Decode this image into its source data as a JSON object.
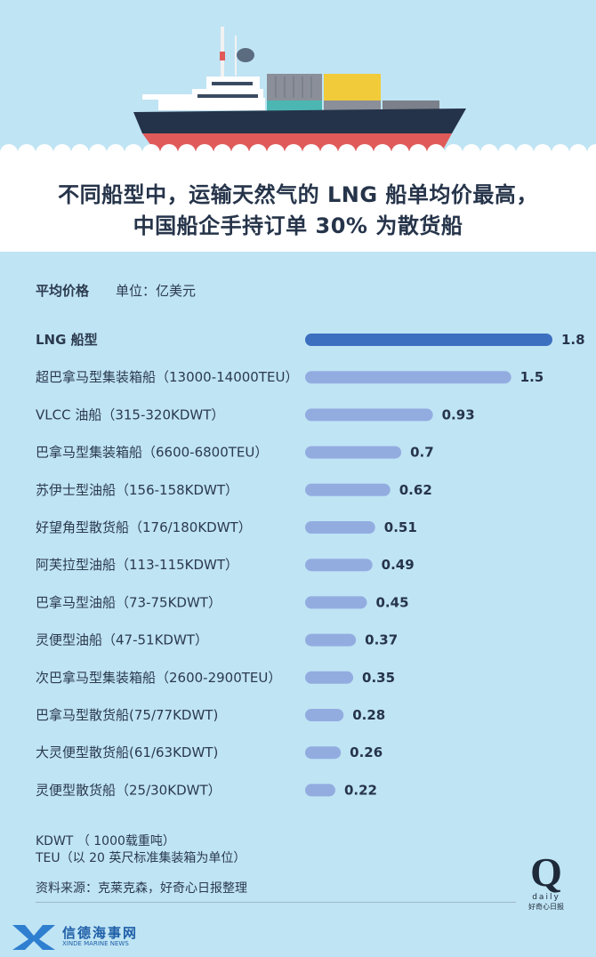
{
  "title": {
    "line1": "不同船型中，运输天然气的 LNG 船单均价最高，",
    "line2": "中国船企手持订单 30% 为散货船"
  },
  "subtitle": {
    "label": "平均价格",
    "unit": "单位：亿美元"
  },
  "colors": {
    "background": "#bfe4f4",
    "highlight_bar": "#3d6fc0",
    "bar": "#93ace0",
    "hull_red": "#e05a5a",
    "hull_navy": "#243349"
  },
  "chart_data": {
    "type": "bar",
    "orientation": "horizontal",
    "categories": [
      "LNG 船型",
      "超巴拿马型集装箱船（13000-14000TEU）",
      "VLCC 油船（315-320KDWT）",
      "巴拿马型集装箱船（6600-6800TEU）",
      "苏伊士型油船（156-158KDWT）",
      "好望角型散货船（176/180KDWT）",
      "阿芙拉型油船（113-115KDWT）",
      "巴拿马型油船（73-75KDWT）",
      "灵便型油船（47-51KDWT）",
      "次巴拿马型集装箱船（2600-2900TEU）",
      "巴拿马型散货船(75/77KDWT)",
      "大灵便型散货船(61/63KDWT)",
      "灵便型散货船（25/30KDWT）"
    ],
    "values": [
      1.8,
      1.5,
      0.93,
      0.7,
      0.62,
      0.51,
      0.49,
      0.45,
      0.37,
      0.35,
      0.28,
      0.26,
      0.22
    ],
    "value_labels": [
      "1.8",
      "1.5",
      "0.93",
      "0.7",
      "0.62",
      "0.51",
      "0.49",
      "0.45",
      "0.37",
      "0.35",
      "0.28",
      "0.26",
      "0.22"
    ],
    "highlight_index": 0,
    "xlim": [
      0,
      1.8
    ],
    "grid": false
  },
  "notes": {
    "kdwt": "KDWT （ 1000载重吨）",
    "teu": "TEU（以 20 英尺标准集装箱为单位）",
    "source": "资料来源：克莱克森，好奇心日报整理"
  },
  "brand": {
    "q": "Q",
    "daily": "daily",
    "daily_cn": "好奇心日报",
    "xinde_cn": "信德海事网",
    "xinde_en": "XINDE MARINE NEWS"
  }
}
